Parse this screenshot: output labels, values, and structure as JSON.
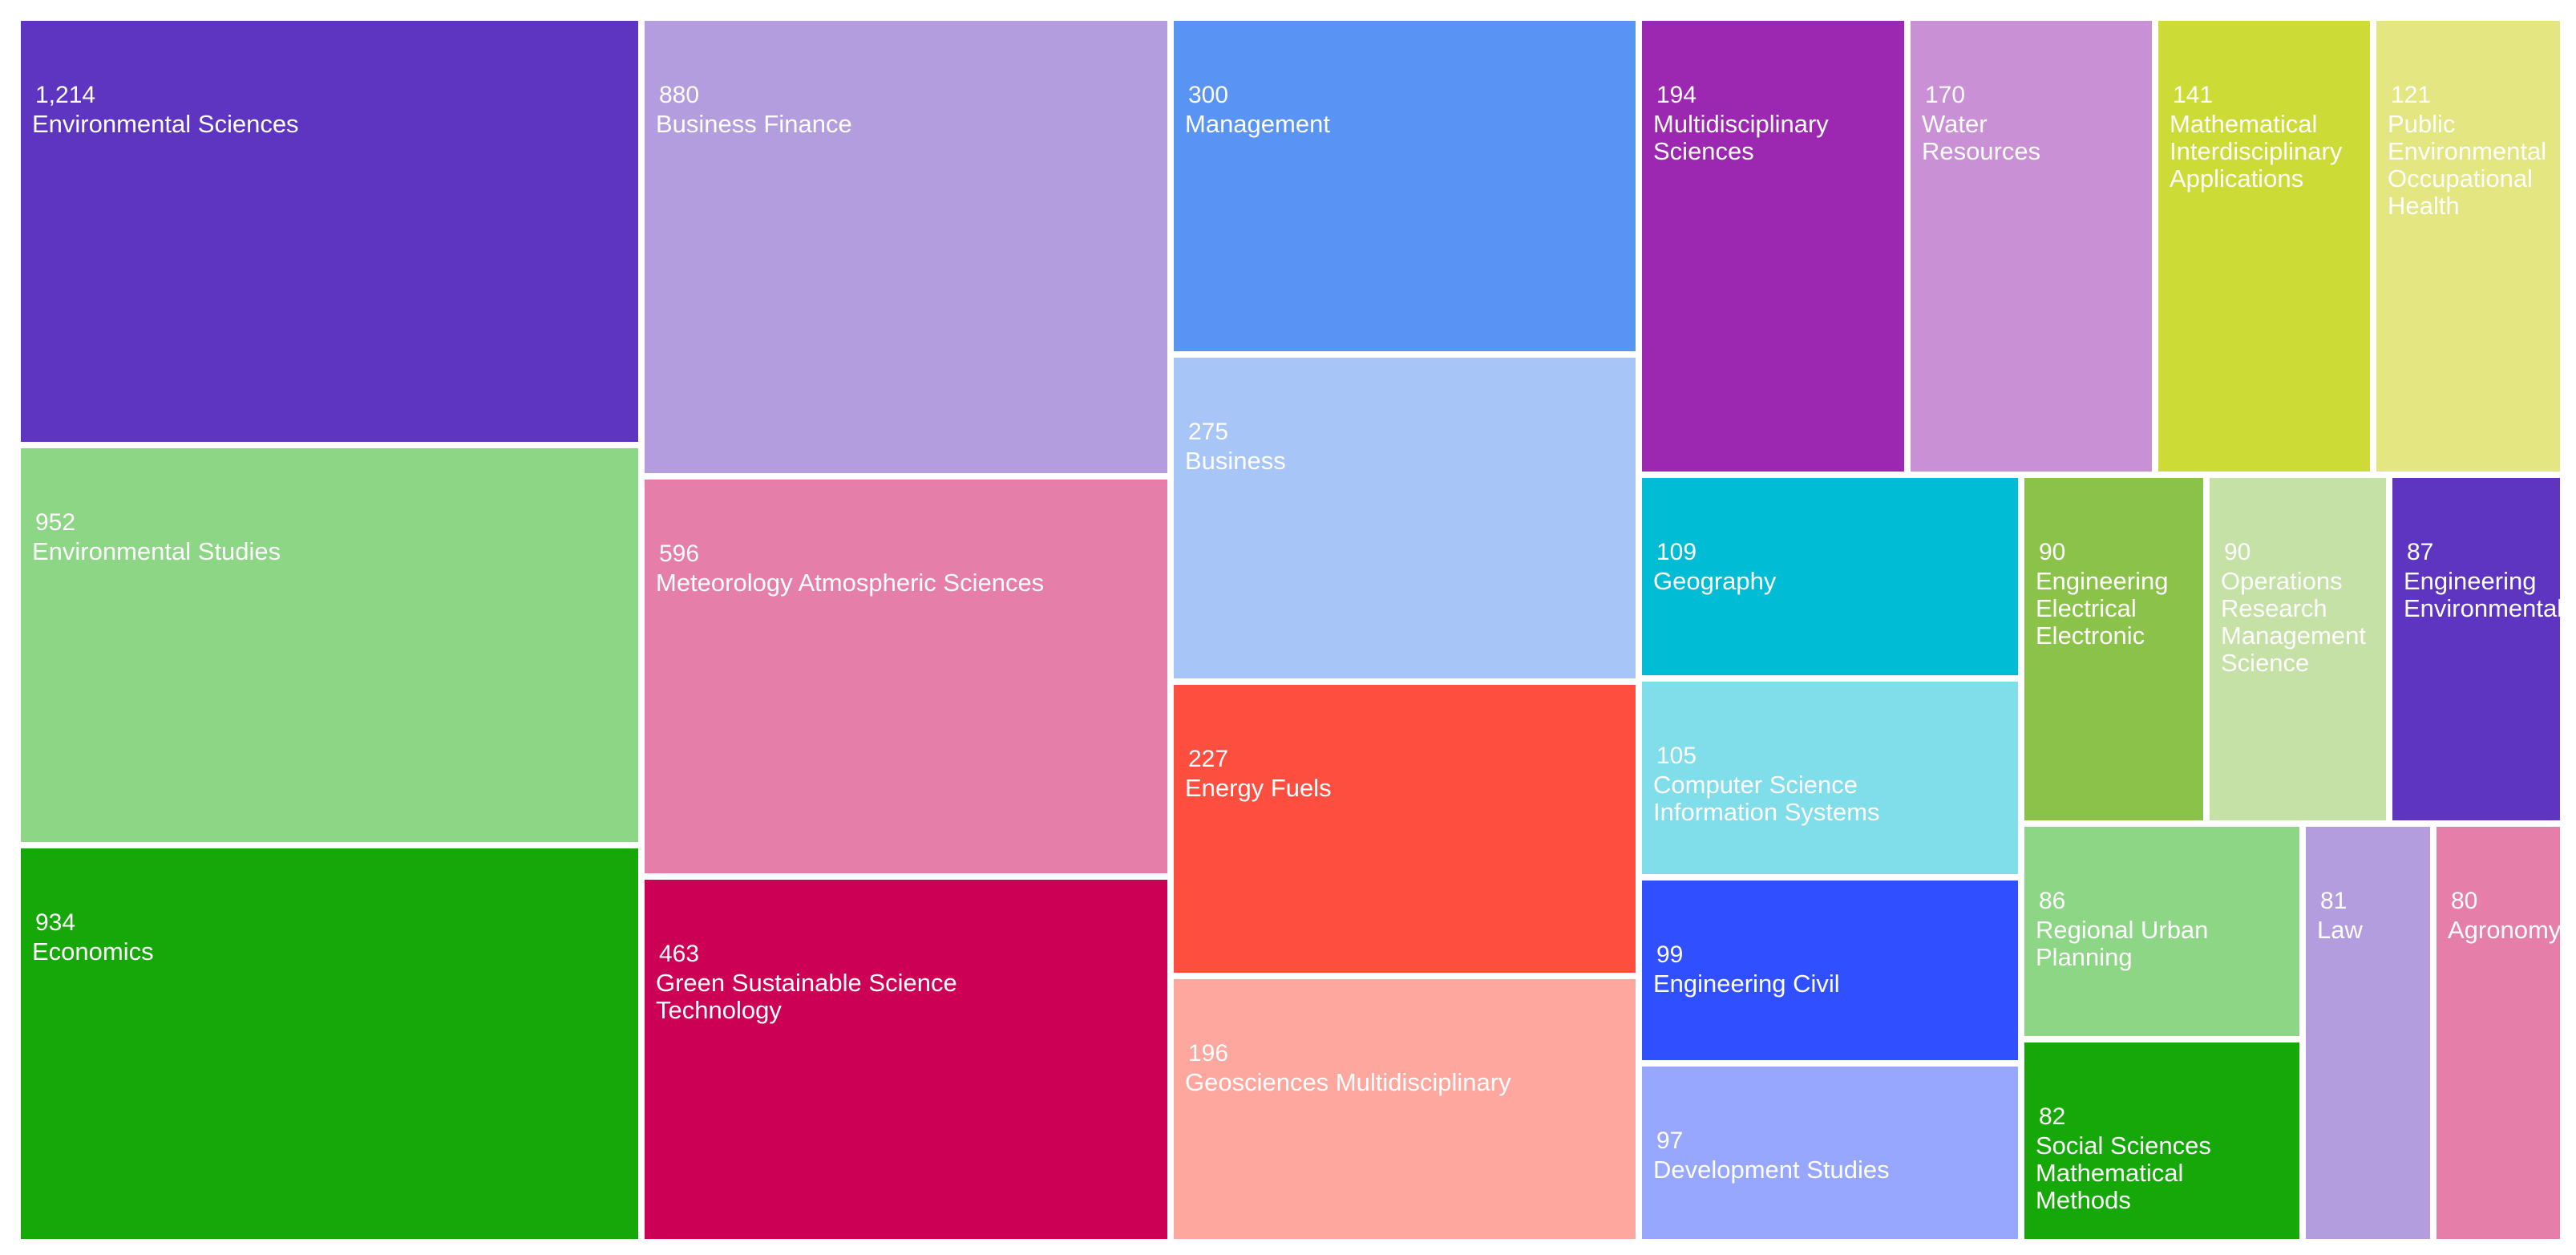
{
  "chart_data": {
    "type": "treemap",
    "title": "",
    "items": [
      {
        "label": "Environmental Sciences",
        "display_value": "1,214",
        "value": 1214,
        "color": "#5e35c1"
      },
      {
        "label": "Environmental Studies",
        "display_value": "952",
        "value": 952,
        "color": "#8dd685"
      },
      {
        "label": "Economics",
        "display_value": "934",
        "value": 934,
        "color": "#16a808"
      },
      {
        "label": "Business Finance",
        "display_value": "880",
        "value": 880,
        "color": "#b39ddf"
      },
      {
        "label": "Meteorology Atmospheric Sciences",
        "display_value": "596",
        "value": 596,
        "color": "#e57fa9"
      },
      {
        "label": "Green Sustainable Science\nTechnology",
        "display_value": "463",
        "value": 463,
        "color": "#cc0055"
      },
      {
        "label": "Management",
        "display_value": "300",
        "value": 300,
        "color": "#5993f3"
      },
      {
        "label": "Business",
        "display_value": "275",
        "value": 275,
        "color": "#a7c6f7"
      },
      {
        "label": "Energy Fuels",
        "display_value": "227",
        "value": 227,
        "color": "#fe4e3f"
      },
      {
        "label": "Geosciences Multidisciplinary",
        "display_value": "196",
        "value": 196,
        "color": "#fea79f"
      },
      {
        "label": "Multidisciplinary\nSciences",
        "display_value": "194",
        "value": 194,
        "color": "#9c27b0"
      },
      {
        "label": "Water\nResources",
        "display_value": "170",
        "value": 170,
        "color": "#ca90d6"
      },
      {
        "label": "Mathematical\nInterdisciplinary\nApplications",
        "display_value": "141",
        "value": 141,
        "color": "#cddb37"
      },
      {
        "label": "Public\nEnvironmental\nOccupational\nHealth",
        "display_value": "121",
        "value": 121,
        "color": "#e3e681"
      },
      {
        "label": "Geography",
        "display_value": "109",
        "value": 109,
        "color": "#00bcd5"
      },
      {
        "label": "Computer Science\nInformation Systems",
        "display_value": "105",
        "value": 105,
        "color": "#80deea"
      },
      {
        "label": "Engineering Civil",
        "display_value": "99",
        "value": 99,
        "color": "#304ffe"
      },
      {
        "label": "Development Studies",
        "display_value": "97",
        "value": 97,
        "color": "#98a7fe"
      },
      {
        "label": "Engineering\nElectrical\nElectronic",
        "display_value": "90",
        "value": 90,
        "color": "#8bc34a"
      },
      {
        "label": "Operations\nResearch\nManagement\nScience",
        "display_value": "90",
        "value": 90,
        "color": "#c5e1a5"
      },
      {
        "label": "Engineering\nEnvironmental",
        "display_value": "87",
        "value": 87,
        "color": "#5e35c1"
      },
      {
        "label": "Regional Urban\nPlanning",
        "display_value": "86",
        "value": 86,
        "color": "#8dd685"
      },
      {
        "label": "Social Sciences\nMathematical\nMethods",
        "display_value": "82",
        "value": 82,
        "color": "#16a808"
      },
      {
        "label": "Law",
        "display_value": "81",
        "value": 81,
        "color": "#b39ddf"
      },
      {
        "label": "Agronomy",
        "display_value": "80",
        "value": 80,
        "color": "#e57fa9"
      }
    ]
  }
}
